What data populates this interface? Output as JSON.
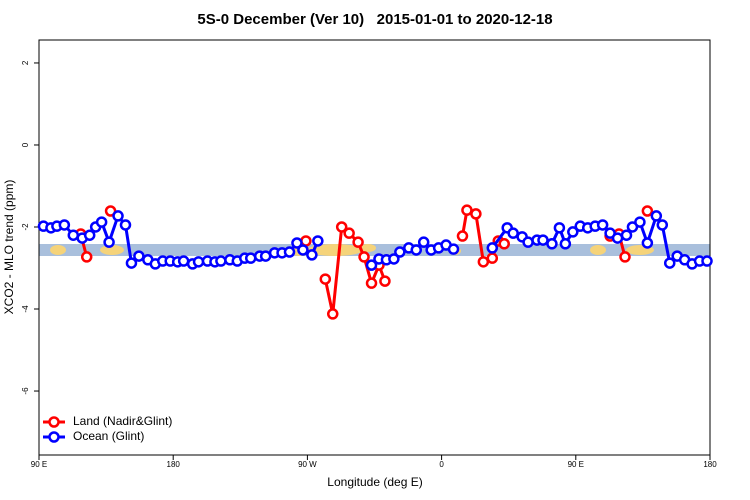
{
  "chart_data": {
    "type": "line",
    "title": "5S-0 December (Ver 10)   2015-01-01 to 2020-12-18",
    "xlabel": "Longitude (deg E)",
    "ylabel": "XCO2 - MLO trend (ppm)",
    "xlim": [
      90,
      540
    ],
    "ylim": [
      -7.56,
      2.56
    ],
    "xticks": [
      {
        "value": 90,
        "label": "90 E"
      },
      180,
      {
        "value": 270,
        "label": "90 W"
      },
      {
        "value": 360,
        "label": "0"
      },
      {
        "value": 450,
        "label": "90 E"
      },
      {
        "value": 540,
        "label": "180"
      }
    ],
    "yticks": [
      2,
      0,
      -2,
      -4,
      -6
    ],
    "legend": "bottomleft",
    "series": [
      {
        "name": "Land (Nadir&Glint)",
        "color": "#ff0000",
        "x": [
          118,
          122,
          null,
          138,
          null,
          269,
          null,
          282,
          287,
          293,
          298,
          304,
          308,
          313,
          318,
          322,
          null,
          374,
          377,
          383,
          388,
          394,
          398,
          402,
          null,
          473,
          479,
          483,
          null,
          498
        ],
        "values": [
          -2.17,
          -2.73,
          null,
          -1.61,
          null,
          -2.34,
          null,
          -3.27,
          -4.12,
          -2.0,
          -2.15,
          -2.37,
          -2.73,
          -3.37,
          -2.93,
          -3.32,
          null,
          -2.22,
          -1.59,
          -1.68,
          -2.85,
          -2.76,
          -2.34,
          -2.41,
          null,
          -2.22,
          -2.17,
          -2.73,
          null,
          -1.61
        ]
      },
      {
        "name": "Ocean (Glint)",
        "color": "#0000ff",
        "x": [
          93,
          98,
          102,
          107,
          113,
          119,
          124,
          128,
          132,
          137,
          143,
          148,
          152,
          157,
          163,
          168,
          173,
          178,
          183,
          187,
          193,
          197,
          203,
          208,
          212,
          218,
          223,
          228,
          232,
          238,
          242,
          248,
          253,
          258,
          263,
          267,
          273,
          277,
          null,
          313,
          318,
          323,
          328,
          332,
          338,
          343,
          348,
          353,
          358,
          363,
          368,
          null,
          394,
          404,
          408,
          414,
          418,
          424,
          428,
          434,
          439,
          443,
          448,
          453,
          458,
          463,
          468,
          473,
          478,
          484,
          488,
          493,
          498,
          504,
          508,
          513,
          518,
          523,
          528,
          533,
          538
        ],
        "values": [
          -1.98,
          -2.02,
          -1.98,
          -1.95,
          -2.2,
          -2.27,
          -2.2,
          -2.0,
          -1.88,
          -2.37,
          -1.73,
          -1.95,
          -2.88,
          -2.71,
          -2.8,
          -2.9,
          -2.83,
          -2.83,
          -2.85,
          -2.83,
          -2.9,
          -2.85,
          -2.83,
          -2.85,
          -2.83,
          -2.8,
          -2.83,
          -2.76,
          -2.76,
          -2.71,
          -2.71,
          -2.63,
          -2.63,
          -2.61,
          -2.39,
          -2.56,
          -2.68,
          -2.34,
          null,
          -2.93,
          -2.78,
          -2.8,
          -2.78,
          -2.61,
          -2.51,
          -2.56,
          -2.37,
          -2.56,
          -2.51,
          -2.44,
          -2.54,
          null,
          -2.51,
          -2.02,
          -2.15,
          -2.24,
          -2.37,
          -2.32,
          -2.32,
          -2.41,
          -2.02,
          -2.41,
          -2.12,
          -1.98,
          -2.02,
          -1.98,
          -1.95,
          -2.15,
          -2.27,
          -2.2,
          -2.0,
          -1.88,
          -2.39,
          -1.73,
          -1.95,
          -2.88,
          -2.71,
          -2.8,
          -2.9,
          -2.83,
          -2.83
        ]
      }
    ]
  }
}
